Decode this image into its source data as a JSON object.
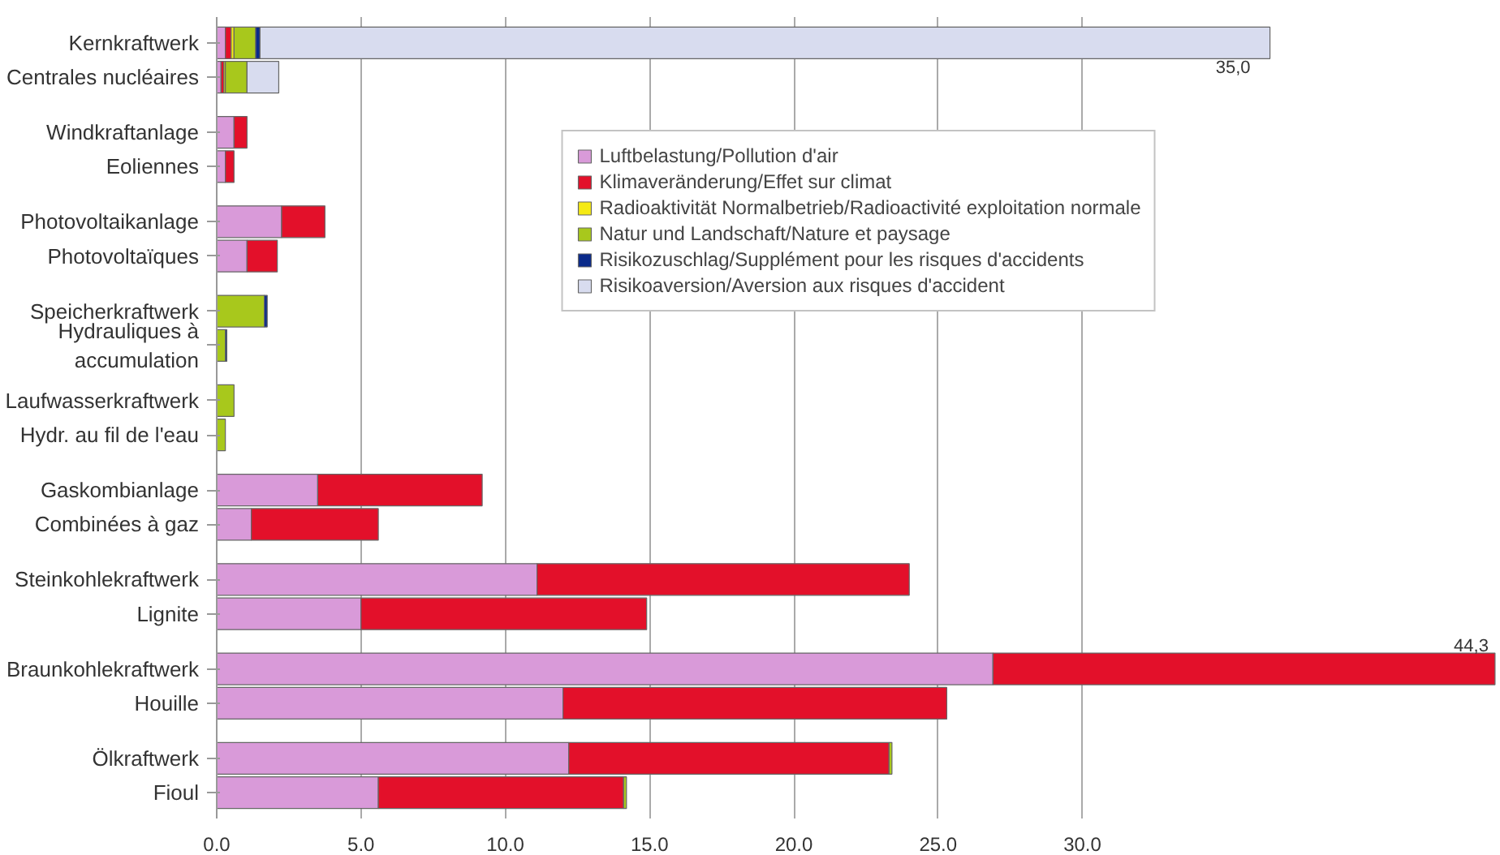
{
  "chart_data": {
    "type": "bar",
    "orientation": "horizontal",
    "stacked": true,
    "categories": [
      "Kernkraftwerk",
      "Centrales nucléaires",
      "Windkraftanlage",
      "Eoliennes",
      "Photovoltaikanlage",
      "Photovoltaïques",
      "Speicherkraftwerk",
      "Hydrauliques à\naccumulation",
      "Laufwasserkraftwerk",
      "Hydr. au fil de l'eau",
      "Gaskombianlage",
      "Combinées à gaz",
      "Steinkohlekraftwerk",
      "Lignite",
      "Braunkohlekraftwerk",
      "Houille",
      "Ölkraftwerk",
      "Fioul"
    ],
    "series": [
      {
        "name": "Luftbelastung/Pollution d'air",
        "color": "#d99ad9",
        "values": [
          0.3,
          0.15,
          0.6,
          0.3,
          2.25,
          1.05,
          null,
          null,
          null,
          null,
          3.5,
          1.2,
          11.1,
          5.0,
          26.9,
          12.0,
          12.2,
          5.6
        ]
      },
      {
        "name": "Klimaveränderung/Effet sur climat",
        "color": "#e3102a",
        "values": [
          0.2,
          0.1,
          0.45,
          0.3,
          1.5,
          1.05,
          null,
          null,
          null,
          null,
          5.7,
          4.4,
          12.9,
          9.9,
          17.4,
          13.3,
          11.1,
          8.5
        ]
      },
      {
        "name": "Radioaktivität Normalbetrieb/Radioactivité exploitation normale",
        "color": "#f5ea14",
        "values": [
          0.1,
          0.05,
          null,
          null,
          null,
          null,
          null,
          null,
          null,
          null,
          null,
          null,
          null,
          null,
          null,
          null,
          null,
          null
        ]
      },
      {
        "name": "Natur und Landschaft/Nature et paysage",
        "color": "#a8c81c",
        "values": [
          0.75,
          0.75,
          null,
          null,
          null,
          null,
          1.65,
          0.3,
          0.6,
          0.3,
          null,
          null,
          null,
          null,
          null,
          null,
          0.1,
          0.1
        ]
      },
      {
        "name": "Risikozuschlag/Supplément pour les risques d'accidents",
        "color": "#0a2a8a",
        "values": [
          0.15,
          null,
          null,
          null,
          null,
          null,
          0.1,
          0.05,
          null,
          null,
          null,
          null,
          null,
          null,
          null,
          null,
          null,
          null
        ]
      },
      {
        "name": "Risikoaversion/Aversion aux risques d'accident",
        "color": "#d8dcef",
        "values": [
          35.0,
          1.1,
          null,
          null,
          null,
          null,
          null,
          null,
          null,
          null,
          null,
          null,
          null,
          null,
          null,
          null,
          null,
          null
        ],
        "value_labels": [
          "35,0",
          null,
          null,
          null,
          null,
          null,
          null,
          null,
          null,
          null,
          null,
          null,
          null,
          null,
          null,
          null,
          null,
          null
        ]
      }
    ],
    "totals": [
      null,
      null,
      null,
      null,
      null,
      null,
      null,
      null,
      null,
      null,
      null,
      null,
      null,
      null,
      "44,3",
      null,
      null,
      null
    ],
    "xlim": [
      0,
      44.5
    ],
    "xticks": [
      {
        "value": 0,
        "label": "0.0"
      },
      {
        "value": 5,
        "label": "5.0"
      },
      {
        "value": 10,
        "label": "10.0"
      },
      {
        "value": 15,
        "label": "15.0"
      },
      {
        "value": 20,
        "label": "20.0"
      },
      {
        "value": 25,
        "label": "25.0"
      },
      {
        "value": 30,
        "label": "30.0"
      }
    ],
    "grid": "x",
    "legend": "top"
  }
}
